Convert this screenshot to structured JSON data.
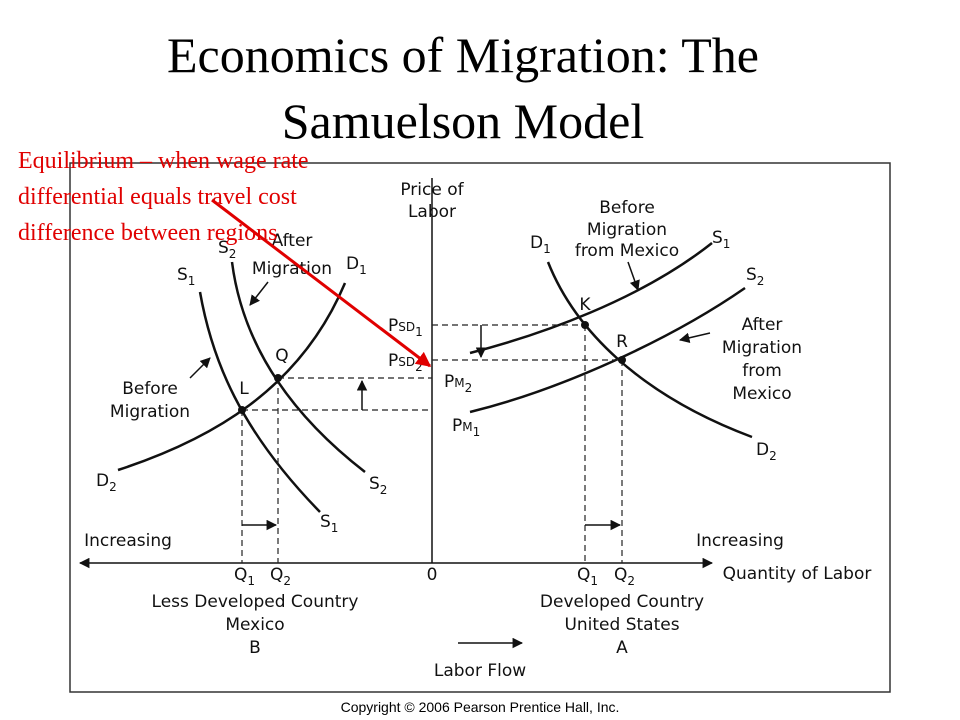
{
  "title": [
    "Economics of Migration: The",
    "Samuelson Model"
  ],
  "annotation": [
    "Equilibrium – when wage rate",
    "differential equals travel cost",
    "difference between regions"
  ],
  "axes": {
    "y_label": [
      "Price of",
      "Labor"
    ],
    "x_label": "Quantity of Labor",
    "origin": "0",
    "increasing_left": "Increasing",
    "increasing_right": "Increasing"
  },
  "left_market": {
    "s2_top": {
      "text": "S",
      "sub": "2"
    },
    "s1_top": {
      "text": "S",
      "sub": "1"
    },
    "d1_top": {
      "text": "D",
      "sub": "1"
    },
    "d2_end": {
      "text": "D",
      "sub": "2"
    },
    "s2_end": {
      "text": "S",
      "sub": "2"
    },
    "s1_end": {
      "text": "S",
      "sub": "1"
    },
    "point_q": "Q",
    "point_l": "L",
    "note_after": [
      "After",
      "Migration"
    ],
    "note_before": [
      "Before",
      "Migration"
    ],
    "q1": {
      "text": "Q",
      "sub": "1"
    },
    "q2": {
      "text": "Q",
      "sub": "2"
    },
    "country": [
      "Less Developed Country",
      "Mexico",
      "B"
    ]
  },
  "right_market": {
    "d1_top": {
      "text": "D",
      "sub": "1"
    },
    "s1_end": {
      "text": "S",
      "sub": "1"
    },
    "s2_end": {
      "text": "S",
      "sub": "2"
    },
    "d2_end": {
      "text": "D",
      "sub": "2"
    },
    "point_k": "K",
    "point_r": "R",
    "note_before": [
      "Before",
      "Migration",
      "from Mexico"
    ],
    "note_after": [
      "After",
      "Migration",
      "from",
      "Mexico"
    ],
    "psd1": {
      "text": "P",
      "mid": "SD",
      "sub": "1"
    },
    "psd2": {
      "text": "P",
      "mid": "SD",
      "sub": "2"
    },
    "pm2": {
      "text": "P",
      "mid": "M",
      "sub": "2"
    },
    "pm1": {
      "text": "P",
      "mid": "M",
      "sub": "1"
    },
    "q1": {
      "text": "Q",
      "sub": "1"
    },
    "q2": {
      "text": "Q",
      "sub": "2"
    },
    "country": [
      "Developed Country",
      "United States",
      "A"
    ]
  },
  "labor_flow": "Labor Flow",
  "copyright": "Copyright © 2006 Pearson Prentice Hall, Inc."
}
